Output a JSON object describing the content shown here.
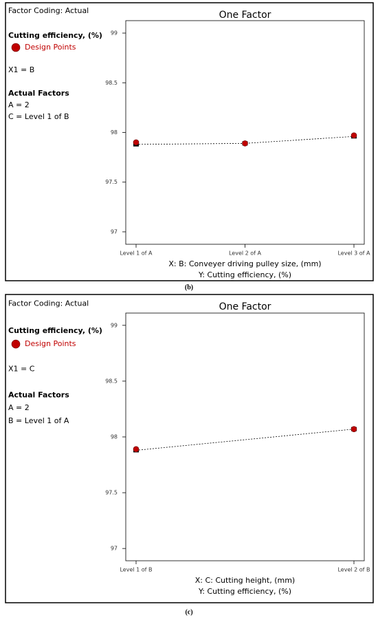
{
  "chart_data": [
    {
      "type": "line",
      "title": "One Factor",
      "caption": "(b)",
      "factor_coding": "Factor Coding: Actual",
      "response": "Cutting efficiency,  (%)",
      "x1": "X1 = B",
      "actual_factors_title": "Actual Factors",
      "actual_factors": [
        "A = 2",
        "C = Level 1 of B"
      ],
      "x_label": "X: B: Conveyer driving pulley size,  (mm)",
      "y_label": "Y: Cutting efficiency,  (%)",
      "categories": [
        "Level 1 of A",
        "Level 2 of A",
        "Level 3 of A"
      ],
      "series": [
        {
          "name": "Design Points",
          "color": "#c00000",
          "values": [
            97.9,
            97.89,
            97.97
          ]
        },
        {
          "color": "#000000",
          "values": [
            97.88,
            97.89,
            97.96
          ]
        }
      ],
      "ylim": [
        96.875,
        99.125
      ],
      "yticks": [
        97,
        97.5,
        98,
        98.5,
        99
      ]
    },
    {
      "type": "line",
      "title": "One Factor",
      "caption": "(c)",
      "factor_coding": "Factor Coding: Actual",
      "response": "Cutting efficiency,  (%)",
      "x1": "X1 = C",
      "actual_factors_title": "Actual Factors",
      "actual_factors": [
        "A = 2",
        "B = Level 1 of A"
      ],
      "x_label": "X: C: Cutting height,  (mm)",
      "y_label": "Y: Cutting efficiency,  (%)",
      "categories": [
        "Level 1 of B",
        "Level 2 of B"
      ],
      "series": [
        {
          "name": "Design Points",
          "color": "#c00000",
          "values": [
            97.89,
            98.07
          ]
        },
        {
          "color": "#000000",
          "values": [
            97.88,
            98.07
          ]
        }
      ],
      "ylim": [
        96.89,
        99.11
      ],
      "yticks": [
        97,
        97.5,
        98,
        98.5,
        99
      ]
    }
  ]
}
